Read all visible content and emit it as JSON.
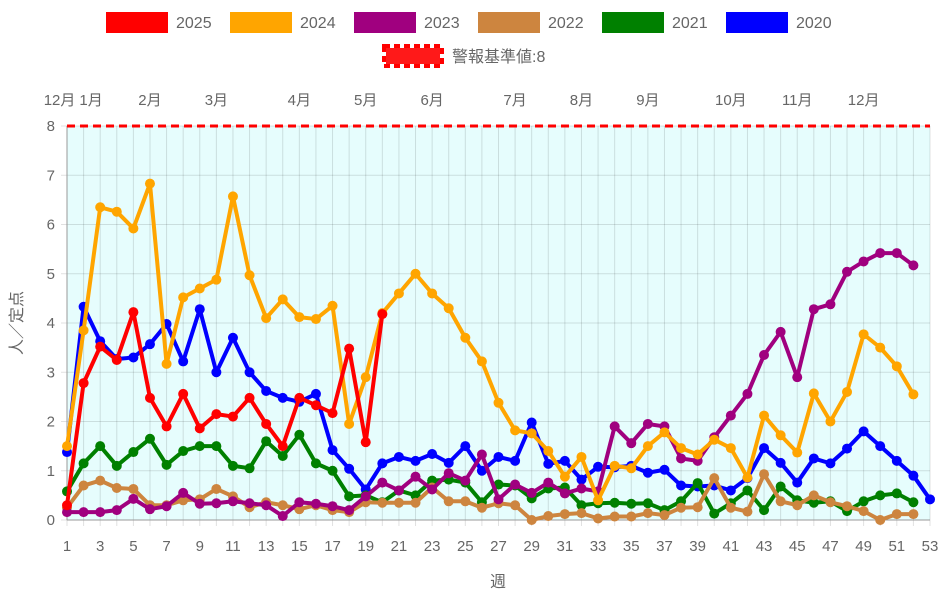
{
  "chart_data": {
    "type": "line",
    "xlabel": "週",
    "ylabel": "人／定点",
    "ylim": [
      0,
      8
    ],
    "xlim": [
      1,
      53
    ],
    "grid": true,
    "legend_position": "top",
    "x_ticks": [
      1,
      3,
      5,
      7,
      9,
      11,
      13,
      15,
      17,
      19,
      21,
      23,
      25,
      27,
      29,
      31,
      33,
      35,
      37,
      39,
      41,
      43,
      45,
      47,
      49,
      51,
      53
    ],
    "y_ticks": [
      0,
      1,
      2,
      3,
      4,
      5,
      6,
      7,
      8
    ],
    "month_labels": [
      {
        "label": "12月",
        "week": 1
      },
      {
        "label": "1月",
        "week": 2
      },
      {
        "label": "2月",
        "week": 6
      },
      {
        "label": "3月",
        "week": 10
      },
      {
        "label": "4月",
        "week": 15
      },
      {
        "label": "5月",
        "week": 19
      },
      {
        "label": "6月",
        "week": 23
      },
      {
        "label": "7月",
        "week": 28
      },
      {
        "label": "8月",
        "week": 32
      },
      {
        "label": "9月",
        "week": 36
      },
      {
        "label": "10月",
        "week": 41
      },
      {
        "label": "11月",
        "week": 45
      },
      {
        "label": "12月",
        "week": 49
      }
    ],
    "threshold": {
      "name": "警報基準値:8",
      "value": 8,
      "color": "#ff0000"
    },
    "series": [
      {
        "name": "2025",
        "color": "#ff0000",
        "values": [
          0.3,
          2.78,
          3.52,
          3.25,
          4.22,
          2.48,
          1.9,
          2.56,
          1.86,
          2.15,
          2.1,
          2.48,
          1.95,
          1.5,
          2.48,
          2.33,
          2.17,
          3.48,
          1.58,
          4.18
        ]
      },
      {
        "name": "2024",
        "color": "#ffa500",
        "values": [
          1.5,
          3.85,
          6.35,
          6.26,
          5.92,
          6.83,
          3.17,
          4.52,
          4.7,
          4.88,
          6.57,
          4.97,
          4.1,
          4.48,
          4.12,
          4.08,
          4.35,
          1.95,
          2.9,
          4.2,
          4.6,
          5.0,
          4.6,
          4.3,
          3.7,
          3.22,
          2.38,
          1.82,
          1.76,
          1.4,
          0.88,
          1.28,
          0.4,
          1.1,
          1.05,
          1.5,
          1.78,
          1.46,
          1.33,
          1.63,
          1.46,
          0.86,
          2.12,
          1.72,
          1.37,
          2.57,
          2.0,
          2.6,
          3.77,
          3.5,
          3.12,
          2.55
        ]
      },
      {
        "name": "2023",
        "color": "#a0007f",
        "values": [
          0.16,
          0.16,
          0.16,
          0.2,
          0.43,
          0.22,
          0.28,
          0.55,
          0.33,
          0.34,
          0.38,
          0.34,
          0.3,
          0.08,
          0.36,
          0.33,
          0.28,
          0.2,
          0.48,
          0.76,
          0.6,
          0.88,
          0.62,
          0.95,
          0.8,
          1.33,
          0.42,
          0.72,
          0.55,
          0.76,
          0.54,
          0.64,
          0.58,
          1.9,
          1.56,
          1.95,
          1.9,
          1.25,
          1.2,
          1.68,
          2.12,
          2.56,
          3.35,
          3.82,
          2.9,
          4.28,
          4.38,
          5.04,
          5.25,
          5.42,
          5.42,
          5.17
        ]
      },
      {
        "name": "2022",
        "color": "#cd853f",
        "values": [
          0.25,
          0.7,
          0.8,
          0.65,
          0.63,
          0.3,
          0.3,
          0.4,
          0.42,
          0.63,
          0.48,
          0.26,
          0.36,
          0.3,
          0.22,
          0.3,
          0.2,
          0.16,
          0.36,
          0.35,
          0.35,
          0.35,
          0.66,
          0.38,
          0.38,
          0.25,
          0.34,
          0.3,
          0.0,
          0.08,
          0.12,
          0.14,
          0.03,
          0.07,
          0.07,
          0.14,
          0.1,
          0.25,
          0.26,
          0.85,
          0.25,
          0.17,
          0.93,
          0.38,
          0.3,
          0.5,
          0.36,
          0.28,
          0.18,
          0.0,
          0.12,
          0.12
        ]
      },
      {
        "name": "2021",
        "color": "#008000",
        "values": [
          0.58,
          1.15,
          1.5,
          1.1,
          1.38,
          1.65,
          1.12,
          1.4,
          1.5,
          1.5,
          1.1,
          1.05,
          1.6,
          1.3,
          1.73,
          1.15,
          1.0,
          0.48,
          0.5,
          0.36,
          0.6,
          0.5,
          0.8,
          0.82,
          0.76,
          0.36,
          0.72,
          0.7,
          0.44,
          0.64,
          0.66,
          0.3,
          0.34,
          0.35,
          0.33,
          0.34,
          0.2,
          0.38,
          0.75,
          0.13,
          0.34,
          0.6,
          0.2,
          0.68,
          0.4,
          0.35,
          0.38,
          0.18,
          0.38,
          0.5,
          0.54,
          0.36
        ]
      },
      {
        "name": "2020",
        "color": "#0000ff",
        "values": [
          1.38,
          4.33,
          3.63,
          3.27,
          3.3,
          3.57,
          3.98,
          3.22,
          4.28,
          3.0,
          3.7,
          3.0,
          2.62,
          2.48,
          2.4,
          2.56,
          1.42,
          1.04,
          0.62,
          1.15,
          1.28,
          1.2,
          1.34,
          1.16,
          1.5,
          1.0,
          1.28,
          1.2,
          1.98,
          1.14,
          1.2,
          0.82,
          1.08,
          1.07,
          1.1,
          0.96,
          1.02,
          0.7,
          0.68,
          0.7,
          0.6,
          0.85,
          1.46,
          1.16,
          0.76,
          1.25,
          1.15,
          1.45,
          1.8,
          1.5,
          1.2,
          0.9,
          0.42
        ]
      }
    ]
  }
}
